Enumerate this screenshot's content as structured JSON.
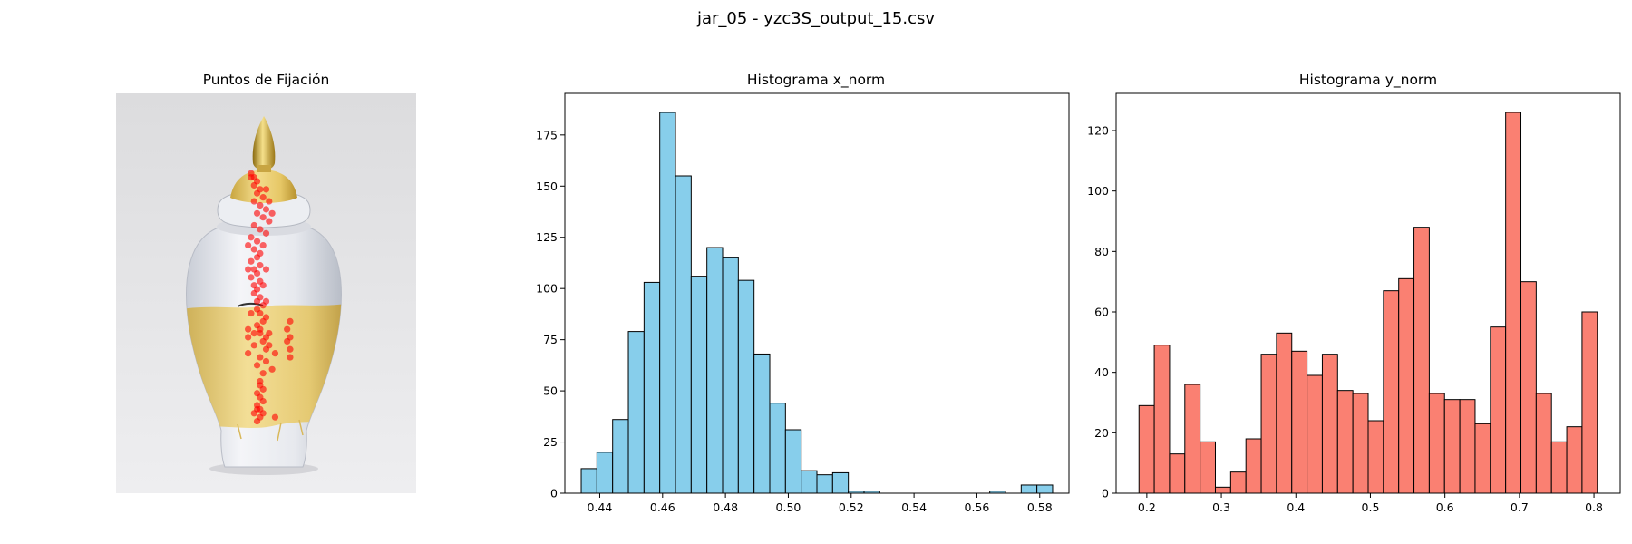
{
  "figure": {
    "title": "jar_05 - yzc3S_output_15.csv"
  },
  "chart_data": [
    {
      "type": "scatter",
      "title": "Puntos de Fijación",
      "background": "photo of a white and gold porcelain ginger jar with gold finial lid",
      "point_color": "#ff0000",
      "points": [
        [
          0.45,
          0.2
        ],
        [
          0.46,
          0.21
        ],
        [
          0.47,
          0.22
        ],
        [
          0.46,
          0.23
        ],
        [
          0.48,
          0.24
        ],
        [
          0.47,
          0.25
        ],
        [
          0.49,
          0.26
        ],
        [
          0.46,
          0.27
        ],
        [
          0.48,
          0.28
        ],
        [
          0.5,
          0.29
        ],
        [
          0.47,
          0.3
        ],
        [
          0.49,
          0.31
        ],
        [
          0.51,
          0.32
        ],
        [
          0.46,
          0.33
        ],
        [
          0.48,
          0.34
        ],
        [
          0.5,
          0.35
        ],
        [
          0.45,
          0.36
        ],
        [
          0.47,
          0.37
        ],
        [
          0.49,
          0.38
        ],
        [
          0.46,
          0.39
        ],
        [
          0.48,
          0.4
        ],
        [
          0.47,
          0.41
        ],
        [
          0.45,
          0.42
        ],
        [
          0.48,
          0.43
        ],
        [
          0.46,
          0.44
        ],
        [
          0.47,
          0.45
        ],
        [
          0.45,
          0.46
        ],
        [
          0.48,
          0.47
        ],
        [
          0.46,
          0.48
        ],
        [
          0.47,
          0.49
        ],
        [
          0.46,
          0.5
        ],
        [
          0.48,
          0.51
        ],
        [
          0.47,
          0.52
        ],
        [
          0.49,
          0.53
        ],
        [
          0.47,
          0.54
        ],
        [
          0.48,
          0.55
        ],
        [
          0.5,
          0.56
        ],
        [
          0.49,
          0.57
        ],
        [
          0.47,
          0.58
        ],
        [
          0.48,
          0.59
        ],
        [
          0.46,
          0.6
        ],
        [
          0.5,
          0.61
        ],
        [
          0.49,
          0.62
        ],
        [
          0.51,
          0.63
        ],
        [
          0.48,
          0.6
        ],
        [
          0.5,
          0.64
        ],
        [
          0.44,
          0.61
        ],
        [
          0.46,
          0.63
        ],
        [
          0.44,
          0.65
        ],
        [
          0.53,
          0.65
        ],
        [
          0.48,
          0.66
        ],
        [
          0.5,
          0.67
        ],
        [
          0.47,
          0.68
        ],
        [
          0.52,
          0.69
        ],
        [
          0.49,
          0.7
        ],
        [
          0.51,
          0.6
        ],
        [
          0.58,
          0.57
        ],
        [
          0.57,
          0.59
        ],
        [
          0.58,
          0.61
        ],
        [
          0.58,
          0.64
        ],
        [
          0.58,
          0.66
        ],
        [
          0.57,
          0.62
        ],
        [
          0.48,
          0.72
        ],
        [
          0.48,
          0.73
        ],
        [
          0.49,
          0.74
        ],
        [
          0.47,
          0.75
        ],
        [
          0.48,
          0.76
        ],
        [
          0.49,
          0.77
        ],
        [
          0.47,
          0.78
        ],
        [
          0.48,
          0.79
        ],
        [
          0.46,
          0.8
        ],
        [
          0.48,
          0.81
        ],
        [
          0.47,
          0.79
        ],
        [
          0.49,
          0.8
        ],
        [
          0.47,
          0.82
        ],
        [
          0.53,
          0.81
        ],
        [
          0.45,
          0.21
        ],
        [
          0.5,
          0.24
        ],
        [
          0.51,
          0.27
        ],
        [
          0.52,
          0.3
        ],
        [
          0.44,
          0.38
        ],
        [
          0.44,
          0.44
        ],
        [
          0.5,
          0.44
        ],
        [
          0.49,
          0.48
        ],
        [
          0.5,
          0.52
        ],
        [
          0.45,
          0.55
        ],
        [
          0.44,
          0.59
        ]
      ]
    },
    {
      "type": "bar",
      "title": "Histograma x_norm",
      "bar_color": "#87ceeb",
      "edge_color": "#000000",
      "bin_edges": [
        0.4341,
        0.4391,
        0.4441,
        0.4491,
        0.4541,
        0.4591,
        0.4641,
        0.4691,
        0.4741,
        0.4791,
        0.4841,
        0.4891,
        0.4941,
        0.4991,
        0.5041,
        0.5091,
        0.5141,
        0.5191,
        0.5241,
        0.5291,
        0.5341,
        0.5391,
        0.5441,
        0.5491,
        0.5541,
        0.5591,
        0.5641,
        0.5691,
        0.5741,
        0.5791,
        0.5841
      ],
      "values": [
        12,
        20,
        36,
        79,
        103,
        186,
        155,
        106,
        120,
        115,
        104,
        68,
        44,
        31,
        11,
        9,
        10,
        1,
        1,
        0,
        0,
        0,
        0,
        0,
        0,
        0,
        1,
        0,
        4,
        4
      ],
      "xlim": [
        0.4289,
        0.5893
      ],
      "ylim": [
        0,
        195.3
      ],
      "xticks": [
        0.44,
        0.46,
        0.48,
        0.5,
        0.52,
        0.54,
        0.56,
        0.58
      ],
      "xtick_labels": [
        "0.44",
        "0.46",
        "0.48",
        "0.50",
        "0.52",
        "0.54",
        "0.56",
        "0.58"
      ],
      "yticks": [
        0,
        25,
        50,
        75,
        100,
        125,
        150,
        175
      ],
      "ytick_labels": [
        "0",
        "25",
        "50",
        "75",
        "100",
        "125",
        "150",
        "175"
      ]
    },
    {
      "type": "bar",
      "title": "Histograma y_norm",
      "bar_color": "#fa8072",
      "edge_color": "#000000",
      "bin_edges": [
        0.1895,
        0.21,
        0.2305,
        0.251,
        0.2715,
        0.292,
        0.3125,
        0.333,
        0.3535,
        0.374,
        0.3945,
        0.415,
        0.4355,
        0.456,
        0.4765,
        0.497,
        0.5175,
        0.538,
        0.5585,
        0.579,
        0.5995,
        0.62,
        0.6405,
        0.661,
        0.6815,
        0.702,
        0.7225,
        0.743,
        0.7635,
        0.784,
        0.8045
      ],
      "values": [
        29,
        49,
        13,
        36,
        17,
        2,
        7,
        18,
        46,
        53,
        47,
        39,
        46,
        34,
        33,
        24,
        67,
        71,
        88,
        33,
        31,
        31,
        23,
        55,
        126,
        70,
        33,
        17,
        22,
        60
      ],
      "xlim": [
        0.1588,
        0.8352
      ],
      "ylim": [
        0,
        132.3
      ],
      "xticks": [
        0.2,
        0.3,
        0.4,
        0.5,
        0.6,
        0.7,
        0.8
      ],
      "xtick_labels": [
        "0.2",
        "0.3",
        "0.4",
        "0.5",
        "0.6",
        "0.7",
        "0.8"
      ],
      "yticks": [
        0,
        20,
        40,
        60,
        80,
        100,
        120
      ],
      "ytick_labels": [
        "0",
        "20",
        "40",
        "60",
        "80",
        "100",
        "120"
      ]
    }
  ]
}
